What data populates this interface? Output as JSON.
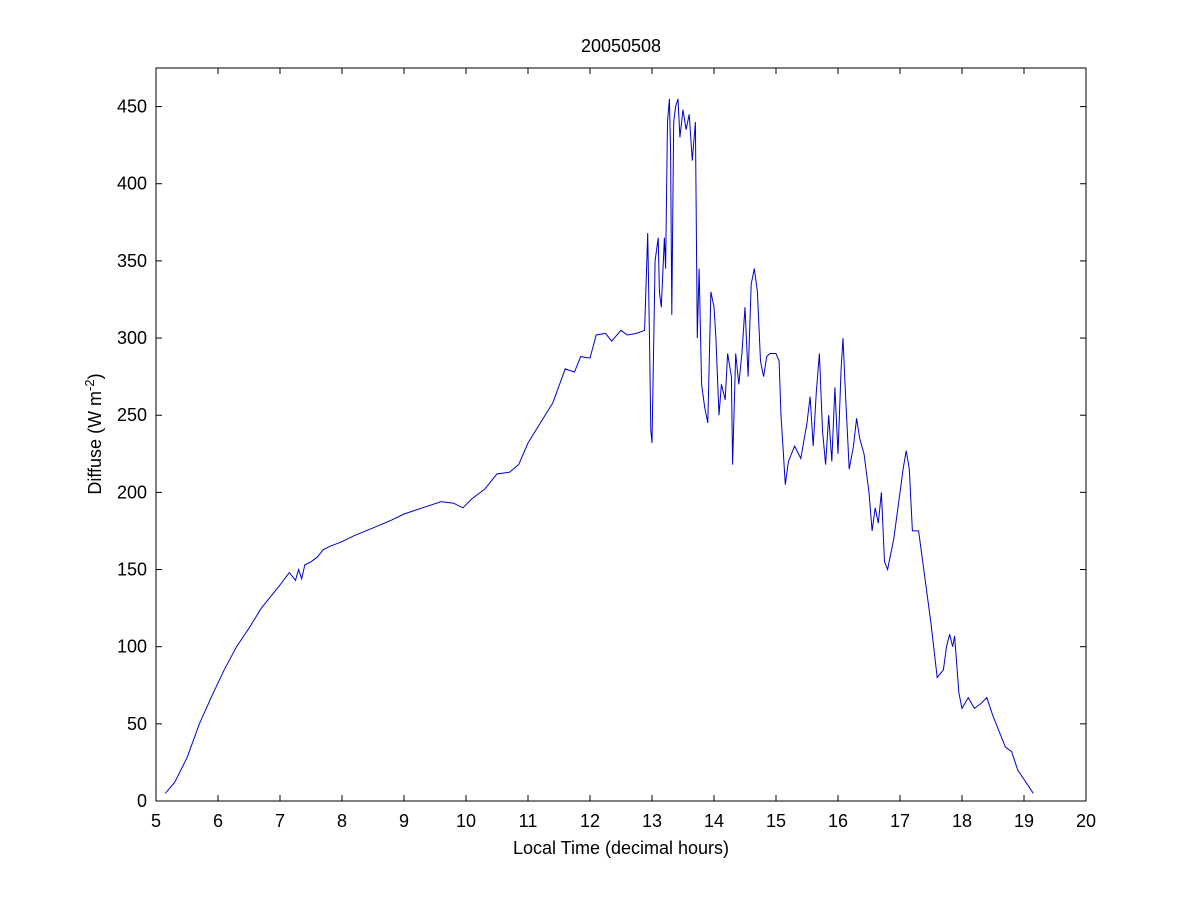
{
  "chart_data": {
    "type": "line",
    "title": "20050508",
    "xlabel": "Local Time (decimal hours)",
    "ylabel": "Diffuse (W m",
    "ylabel_sup": "-2",
    "ylabel_close": ")",
    "xlim": [
      5,
      20
    ],
    "ylim": [
      0,
      475
    ],
    "xticks": [
      5,
      6,
      7,
      8,
      9,
      10,
      11,
      12,
      13,
      14,
      15,
      16,
      17,
      18,
      19,
      20
    ],
    "yticks": [
      0,
      50,
      100,
      150,
      200,
      250,
      300,
      350,
      400,
      450
    ],
    "grid": false,
    "series": [
      {
        "color": "#0000cc",
        "points": [
          [
            5.15,
            5
          ],
          [
            5.3,
            12
          ],
          [
            5.5,
            28
          ],
          [
            5.7,
            50
          ],
          [
            5.9,
            68
          ],
          [
            6.1,
            85
          ],
          [
            6.3,
            100
          ],
          [
            6.5,
            112
          ],
          [
            6.7,
            125
          ],
          [
            6.9,
            135
          ],
          [
            7.0,
            140
          ],
          [
            7.15,
            148
          ],
          [
            7.25,
            143
          ],
          [
            7.3,
            150
          ],
          [
            7.35,
            144
          ],
          [
            7.4,
            153
          ],
          [
            7.5,
            155
          ],
          [
            7.6,
            158
          ],
          [
            7.7,
            163
          ],
          [
            7.8,
            165
          ],
          [
            8.0,
            168
          ],
          [
            8.2,
            172
          ],
          [
            8.5,
            177
          ],
          [
            8.8,
            182
          ],
          [
            9.0,
            186
          ],
          [
            9.3,
            190
          ],
          [
            9.6,
            194
          ],
          [
            9.8,
            193
          ],
          [
            9.95,
            190
          ],
          [
            10.1,
            196
          ],
          [
            10.3,
            202
          ],
          [
            10.5,
            212
          ],
          [
            10.7,
            213
          ],
          [
            10.85,
            218
          ],
          [
            11.0,
            232
          ],
          [
            11.2,
            245
          ],
          [
            11.4,
            258
          ],
          [
            11.6,
            280
          ],
          [
            11.75,
            278
          ],
          [
            11.85,
            288
          ],
          [
            12.0,
            287
          ],
          [
            12.1,
            302
          ],
          [
            12.25,
            303
          ],
          [
            12.35,
            298
          ],
          [
            12.5,
            305
          ],
          [
            12.6,
            302
          ],
          [
            12.75,
            303
          ],
          [
            12.88,
            305
          ],
          [
            12.93,
            368
          ],
          [
            12.96,
            300
          ],
          [
            12.98,
            240
          ],
          [
            13.0,
            232
          ],
          [
            13.05,
            350
          ],
          [
            13.1,
            365
          ],
          [
            13.12,
            330
          ],
          [
            13.15,
            320
          ],
          [
            13.2,
            365
          ],
          [
            13.22,
            345
          ],
          [
            13.25,
            440
          ],
          [
            13.28,
            455
          ],
          [
            13.3,
            420
          ],
          [
            13.32,
            315
          ],
          [
            13.35,
            440
          ],
          [
            13.38,
            450
          ],
          [
            13.42,
            455
          ],
          [
            13.45,
            430
          ],
          [
            13.5,
            448
          ],
          [
            13.55,
            435
          ],
          [
            13.6,
            445
          ],
          [
            13.65,
            415
          ],
          [
            13.7,
            440
          ],
          [
            13.73,
            300
          ],
          [
            13.76,
            345
          ],
          [
            13.8,
            270
          ],
          [
            13.85,
            255
          ],
          [
            13.9,
            245
          ],
          [
            13.95,
            330
          ],
          [
            14.0,
            320
          ],
          [
            14.03,
            300
          ],
          [
            14.08,
            250
          ],
          [
            14.12,
            270
          ],
          [
            14.18,
            260
          ],
          [
            14.22,
            290
          ],
          [
            14.28,
            275
          ],
          [
            14.3,
            218
          ],
          [
            14.35,
            290
          ],
          [
            14.4,
            270
          ],
          [
            14.45,
            290
          ],
          [
            14.5,
            320
          ],
          [
            14.55,
            275
          ],
          [
            14.6,
            335
          ],
          [
            14.65,
            345
          ],
          [
            14.7,
            330
          ],
          [
            14.75,
            285
          ],
          [
            14.8,
            275
          ],
          [
            14.85,
            288
          ],
          [
            14.9,
            290
          ],
          [
            15.0,
            290
          ],
          [
            15.05,
            285
          ],
          [
            15.08,
            250
          ],
          [
            15.12,
            225
          ],
          [
            15.15,
            205
          ],
          [
            15.2,
            220
          ],
          [
            15.3,
            230
          ],
          [
            15.4,
            222
          ],
          [
            15.5,
            245
          ],
          [
            15.55,
            262
          ],
          [
            15.6,
            230
          ],
          [
            15.65,
            265
          ],
          [
            15.7,
            290
          ],
          [
            15.75,
            240
          ],
          [
            15.8,
            218
          ],
          [
            15.85,
            250
          ],
          [
            15.9,
            220
          ],
          [
            15.95,
            268
          ],
          [
            16.0,
            225
          ],
          [
            16.05,
            280
          ],
          [
            16.08,
            300
          ],
          [
            16.12,
            265
          ],
          [
            16.18,
            215
          ],
          [
            16.25,
            230
          ],
          [
            16.3,
            248
          ],
          [
            16.35,
            235
          ],
          [
            16.42,
            225
          ],
          [
            16.5,
            200
          ],
          [
            16.55,
            175
          ],
          [
            16.6,
            190
          ],
          [
            16.65,
            180
          ],
          [
            16.7,
            200
          ],
          [
            16.75,
            155
          ],
          [
            16.8,
            150
          ],
          [
            16.9,
            170
          ],
          [
            17.0,
            200
          ],
          [
            17.05,
            215
          ],
          [
            17.1,
            227
          ],
          [
            17.15,
            215
          ],
          [
            17.2,
            175
          ],
          [
            17.3,
            175
          ],
          [
            17.4,
            145
          ],
          [
            17.5,
            115
          ],
          [
            17.6,
            80
          ],
          [
            17.7,
            85
          ],
          [
            17.75,
            100
          ],
          [
            17.8,
            108
          ],
          [
            17.85,
            100
          ],
          [
            17.88,
            107
          ],
          [
            17.95,
            70
          ],
          [
            18.0,
            60
          ],
          [
            18.1,
            67
          ],
          [
            18.2,
            60
          ],
          [
            18.3,
            63
          ],
          [
            18.4,
            67
          ],
          [
            18.5,
            55
          ],
          [
            18.6,
            45
          ],
          [
            18.7,
            35
          ],
          [
            18.8,
            32
          ],
          [
            18.9,
            20
          ],
          [
            19.0,
            14
          ],
          [
            19.1,
            8
          ],
          [
            19.15,
            5
          ]
        ]
      }
    ]
  }
}
